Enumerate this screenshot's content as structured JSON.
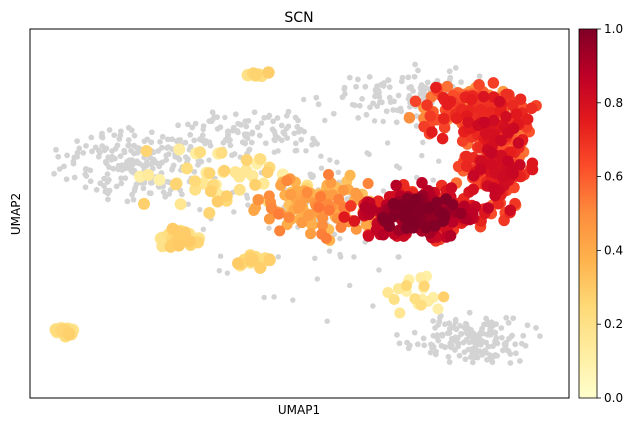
{
  "chart_data": {
    "type": "scatter",
    "title": "SCN",
    "xlabel": "UMAP1",
    "ylabel": "UMAP2",
    "xticks_shown": false,
    "yticks_shown": false,
    "xlim": [
      0,
      100
    ],
    "ylim": [
      0,
      100
    ],
    "grid": false,
    "null_color": "#d3d3d3",
    "colormap": "YlOrRd",
    "colormap_stops": [
      "#ffffcc",
      "#ffeda0",
      "#fed976",
      "#feb24c",
      "#fd8d3c",
      "#fc4e2a",
      "#e31a1c",
      "#bd0026",
      "#800026"
    ],
    "colorbar": {
      "placement": "right",
      "range": [
        0.0,
        1.0
      ],
      "tick_labels": [
        "0.0",
        "0.2",
        "0.4",
        "0.6",
        "0.8",
        "1.0"
      ]
    },
    "clusters": [
      {
        "id": "left-body",
        "shape": "ellipse",
        "cx": 20,
        "cy": 64,
        "rx": 16,
        "ry": 10,
        "n": 220,
        "value_range": [
          0.0,
          0.0
        ],
        "zero_frac": 0.9,
        "pt": 0.9
      },
      {
        "id": "left-upper-arm",
        "shape": "ellipse",
        "cx": 40,
        "cy": 72,
        "rx": 14,
        "ry": 6,
        "n": 90,
        "value_range": [
          0.0,
          0.0
        ],
        "zero_frac": 0.85,
        "pt": 0.9
      },
      {
        "id": "left-yellow-scatter",
        "shape": "ellipse",
        "cx": 35,
        "cy": 60,
        "rx": 16,
        "ry": 12,
        "n": 50,
        "value_range": [
          0.1,
          0.3
        ],
        "zero_frac": 0.0,
        "pt": 1.3
      },
      {
        "id": "middle-band",
        "shape": "ellipse",
        "cx": 54,
        "cy": 52,
        "rx": 12,
        "ry": 9,
        "n": 140,
        "value_range": [
          0.3,
          0.55
        ],
        "zero_frac": 0.1,
        "pt": 1.2
      },
      {
        "id": "top-grey",
        "shape": "ellipse",
        "cx": 70,
        "cy": 82,
        "rx": 16,
        "ry": 8,
        "n": 120,
        "value_range": [
          0.0,
          0.0
        ],
        "zero_frac": 1.0,
        "pt": 0.9
      },
      {
        "id": "top-orange",
        "shape": "ellipse",
        "cx": 82,
        "cy": 78,
        "rx": 11,
        "ry": 8,
        "n": 170,
        "value_range": [
          0.45,
          0.75
        ],
        "zero_frac": 0.0,
        "pt": 1.25
      },
      {
        "id": "right-arm",
        "shape": "ellipse",
        "cx": 86,
        "cy": 65,
        "rx": 7,
        "ry": 17,
        "n": 220,
        "value_range": [
          0.55,
          0.85
        ],
        "zero_frac": 0.0,
        "pt": 1.25
      },
      {
        "id": "hotspot-outer",
        "shape": "ellipse",
        "cx": 72,
        "cy": 50,
        "rx": 13,
        "ry": 8,
        "n": 200,
        "value_range": [
          0.65,
          0.9
        ],
        "zero_frac": 0.0,
        "pt": 1.25
      },
      {
        "id": "hotspot-core",
        "shape": "ellipse",
        "cx": 72.5,
        "cy": 50,
        "rx": 7,
        "ry": 5,
        "n": 140,
        "value_range": [
          0.88,
          1.0
        ],
        "zero_frac": 0.0,
        "pt": 1.25
      },
      {
        "id": "bottom-right-grey",
        "shape": "ellipse",
        "cx": 82,
        "cy": 16,
        "rx": 13,
        "ry": 7,
        "n": 170,
        "value_range": [
          0.0,
          0.0
        ],
        "zero_frac": 1.0,
        "pt": 0.9
      },
      {
        "id": "bottom-right-yellow",
        "shape": "ellipse",
        "cx": 72,
        "cy": 27,
        "rx": 6,
        "ry": 6,
        "n": 20,
        "value_range": [
          0.1,
          0.3
        ],
        "zero_frac": 0.0,
        "pt": 1.2
      },
      {
        "id": "grey-stray",
        "shape": "ellipse",
        "cx": 55,
        "cy": 50,
        "rx": 30,
        "ry": 30,
        "n": 110,
        "value_range": [
          0.0,
          0.0
        ],
        "zero_frac": 1.0,
        "pt": 0.85
      },
      {
        "id": "yellow-lower-left-strip",
        "shape": "ellipse",
        "cx": 28,
        "cy": 43,
        "rx": 4,
        "ry": 3,
        "n": 28,
        "value_range": [
          0.15,
          0.3
        ],
        "zero_frac": 0.0,
        "pt": 1.35
      },
      {
        "id": "yellow-bottom-strip",
        "shape": "ellipse",
        "cx": 42,
        "cy": 37,
        "rx": 5,
        "ry": 3,
        "n": 22,
        "value_range": [
          0.15,
          0.3
        ],
        "zero_frac": 0.0,
        "pt": 1.3
      },
      {
        "id": "isolated-bottom-left",
        "shape": "ellipse",
        "cx": 7,
        "cy": 18,
        "rx": 2.4,
        "ry": 1.8,
        "n": 22,
        "value_range": [
          0.15,
          0.28
        ],
        "zero_frac": 0.0,
        "pt": 1.4
      },
      {
        "id": "isolated-top-small",
        "shape": "ellipse",
        "cx": 42,
        "cy": 88,
        "rx": 2.2,
        "ry": 1.5,
        "n": 10,
        "value_range": [
          0.15,
          0.3
        ],
        "zero_frac": 0.0,
        "pt": 1.35
      }
    ]
  }
}
